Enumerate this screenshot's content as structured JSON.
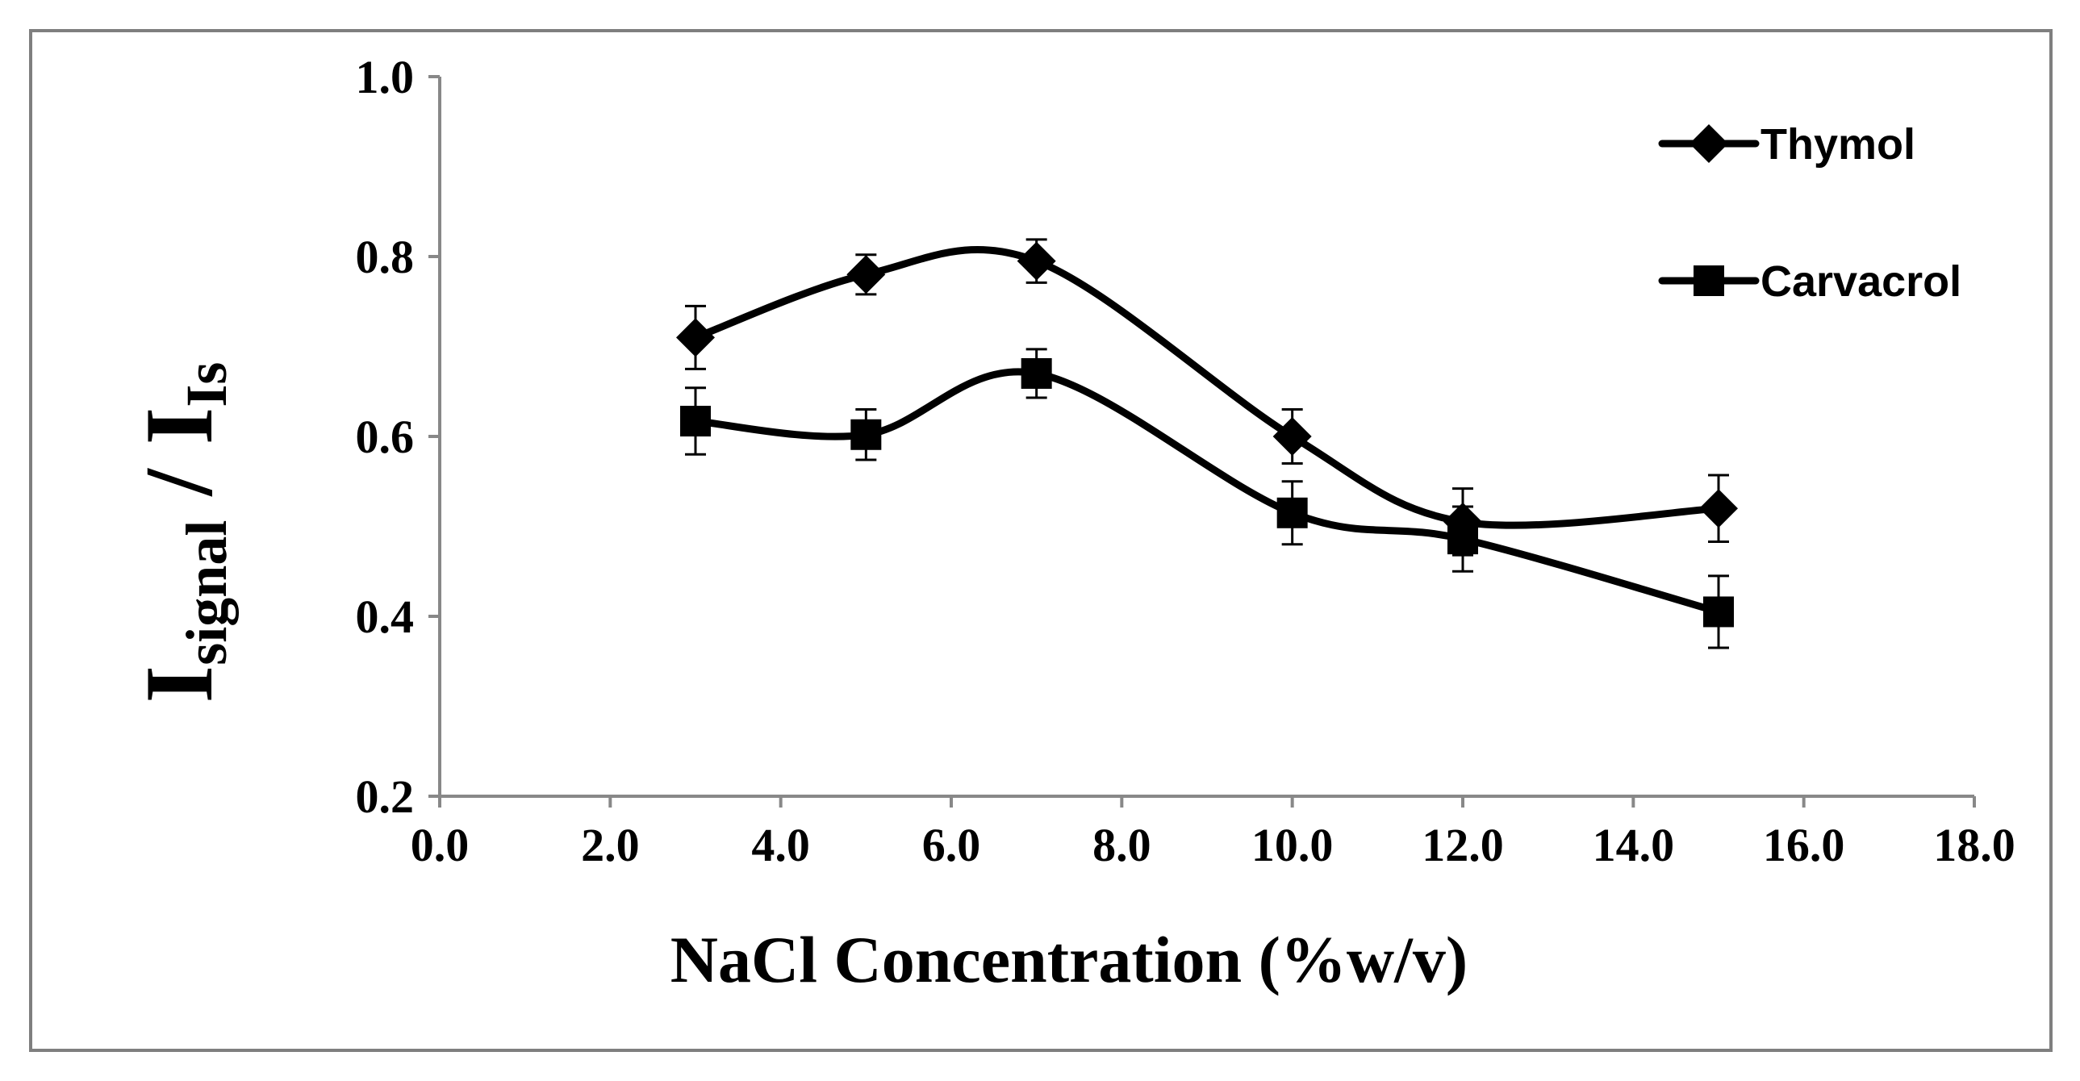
{
  "chart_data": {
    "type": "line",
    "title": "",
    "xlabel": "NaCl Concentration (%w/v)",
    "ylabel": {
      "main_1": "I",
      "sub_1": "signal",
      "sep": " / ",
      "main_2": "I",
      "sub_2": "Is"
    },
    "xlim": [
      0,
      18
    ],
    "ylim": [
      0.2,
      1.0
    ],
    "x_ticks": [
      {
        "value": 0,
        "label": "0.0"
      },
      {
        "value": 2,
        "label": "2.0"
      },
      {
        "value": 4,
        "label": "4.0"
      },
      {
        "value": 6,
        "label": "6.0"
      },
      {
        "value": 8,
        "label": "8.0"
      },
      {
        "value": 10,
        "label": "10.0"
      },
      {
        "value": 12,
        "label": "12.0"
      },
      {
        "value": 14,
        "label": "14.0"
      },
      {
        "value": 16,
        "label": "16.0"
      },
      {
        "value": 18,
        "label": "18.0"
      }
    ],
    "y_ticks": [
      {
        "value": 0.2,
        "label": "0.2"
      },
      {
        "value": 0.4,
        "label": "0.4"
      },
      {
        "value": 0.6,
        "label": "0.6"
      },
      {
        "value": 0.8,
        "label": "0.8"
      },
      {
        "value": 1.0,
        "label": "1.0"
      }
    ],
    "grid": false,
    "legend_position": "top-right",
    "series": [
      {
        "name": "Thymol",
        "marker": "diamond",
        "color": "#000000",
        "x": [
          3,
          5,
          7,
          10,
          12,
          15
        ],
        "y": [
          0.71,
          0.78,
          0.795,
          0.6,
          0.505,
          0.52
        ],
        "error": [
          0.035,
          0.022,
          0.024,
          0.03,
          0.037,
          0.037
        ]
      },
      {
        "name": "Carvacrol",
        "marker": "square",
        "color": "#000000",
        "x": [
          3,
          5,
          7,
          10,
          12,
          15
        ],
        "y": [
          0.617,
          0.602,
          0.67,
          0.515,
          0.486,
          0.405
        ],
        "error": [
          0.037,
          0.028,
          0.027,
          0.035,
          0.036,
          0.04
        ]
      }
    ]
  }
}
